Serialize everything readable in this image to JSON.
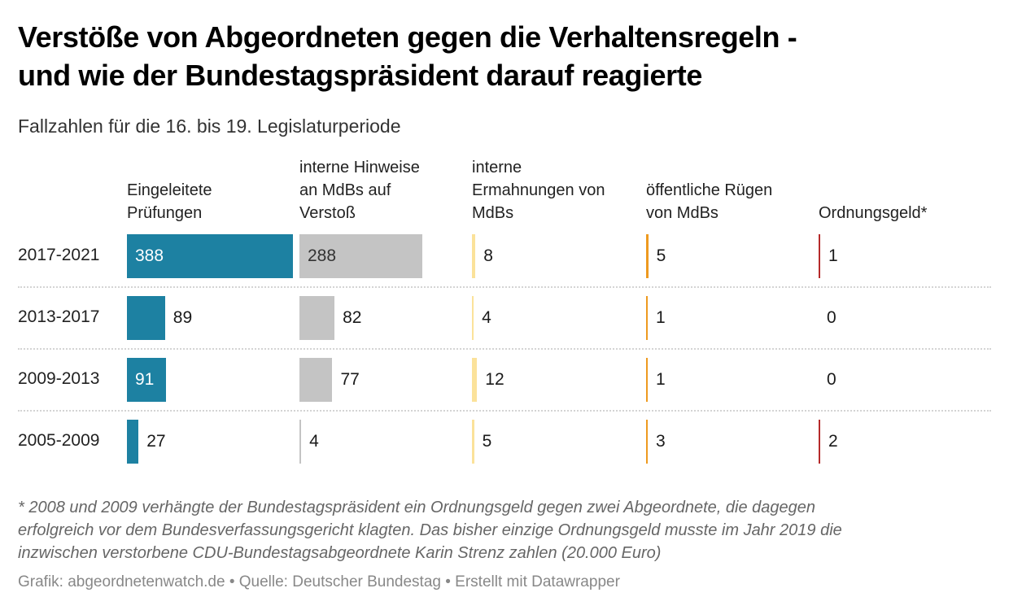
{
  "title_lines": [
    "Verstöße von Abgeordneten gegen die Verhaltensregeln -",
    "und wie der Bundestagspräsident darauf reagierte"
  ],
  "subtitle": "Fallzahlen für die 16. bis 19. Legislaturperiode",
  "chart_data": {
    "type": "table",
    "columns": [
      {
        "header_lines": [
          "Eingeleitete",
          "Prüfungen"
        ],
        "color": "#1d81a2",
        "values": [
          388,
          89,
          91,
          27
        ]
      },
      {
        "header_lines": [
          "interne Hinweise",
          "an MdBs auf",
          "Verstoß"
        ],
        "color": "#c4c4c4",
        "values": [
          288,
          82,
          77,
          4
        ]
      },
      {
        "header_lines": [
          "interne",
          "Ermahnungen von",
          "MdBs"
        ],
        "color": "#fbe29a",
        "values": [
          8,
          4,
          12,
          5
        ]
      },
      {
        "header_lines": [
          "öffentliche Rügen",
          "von MdBs"
        ],
        "color": "#ee9a1f",
        "values": [
          5,
          1,
          1,
          3
        ]
      },
      {
        "header_lines": [
          "Ordnungsgeld*"
        ],
        "color": "#b52a2a",
        "values": [
          1,
          0,
          0,
          2
        ]
      }
    ],
    "rows": [
      "2017-2021",
      "2013-2017",
      "2009-2013",
      "2005-2009"
    ]
  },
  "footnote_lines": [
    "* 2008 und 2009 verhängte der Bundestagspräsident ein Ordnungsgeld gegen zwei Abgeordnete, die dagegen",
    "erfolgreich vor dem Bundesverfassungsgericht klagten. Das bisher einzige Ordnungsgeld musste im Jahr 2019 die",
    "inzwischen verstorbene CDU-Bundestagsabgeordnete Karin Strenz zahlen (20.000 Euro)"
  ],
  "credit": "Grafik: abgeordnetenwatch.de • Quelle: Deutscher Bundestag • Erstellt mit Datawrapper"
}
